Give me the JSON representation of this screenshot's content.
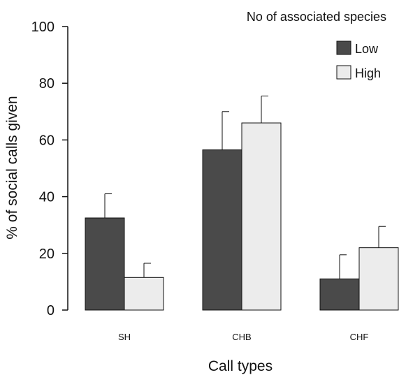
{
  "chart_data": {
    "type": "bar",
    "title": "",
    "xlabel": "Call types",
    "ylabel": "% of social calls given",
    "ylim": [
      0,
      100
    ],
    "yticks": [
      0,
      20,
      40,
      60,
      80,
      100
    ],
    "categories": [
      "SH",
      "CHB",
      "CHF"
    ],
    "legend": {
      "title": "No of associated species",
      "placement": "top-right"
    },
    "series": [
      {
        "name": "Low",
        "color": "#4a4a4a",
        "values": [
          32.5,
          56.5,
          11.0
        ],
        "errors": [
          8.5,
          13.5,
          8.5
        ]
      },
      {
        "name": "High",
        "color": "#ececec",
        "values": [
          11.5,
          66.0,
          22.0
        ],
        "errors": [
          5.0,
          9.5,
          7.5
        ]
      }
    ],
    "error_bars": "upper",
    "grid": false
  }
}
